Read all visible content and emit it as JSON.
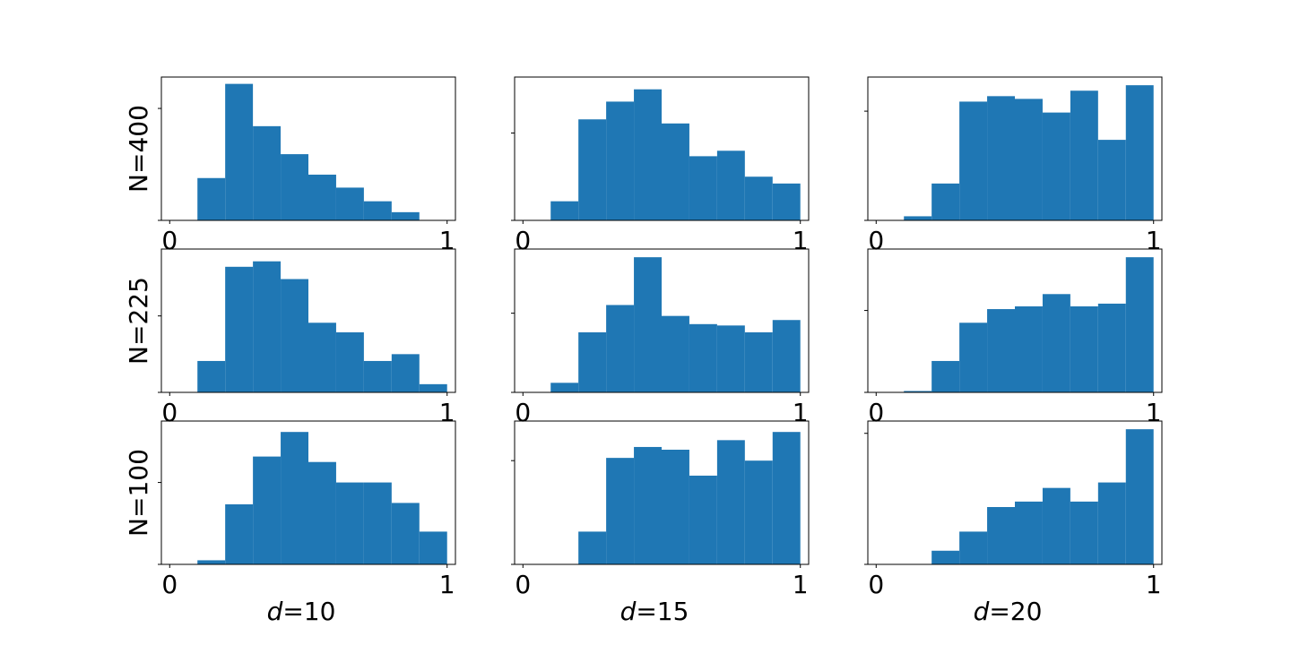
{
  "chart_data": {
    "type": "bar",
    "layout": "3x3 grid of histograms",
    "bar_color": "#1f77b4",
    "bins": [
      0.0,
      0.1,
      0.2,
      0.3,
      0.4,
      0.5,
      0.6,
      0.7,
      0.8,
      0.9,
      1.0
    ],
    "xlim": [
      -0.03,
      1.03
    ],
    "x_tick_labels": [
      "0",
      "1"
    ],
    "x_tick_values": [
      0,
      1
    ],
    "grid": false,
    "row_labels": [
      "N=400",
      "N=225",
      "N=100"
    ],
    "col_labels": [
      {
        "var": "d",
        "suffix": "=10"
      },
      {
        "var": "d",
        "suffix": "=15"
      },
      {
        "var": "d",
        "suffix": "=20"
      }
    ],
    "panels": [
      [
        {
          "values": [
            0,
            0.31,
            1.0,
            0.69,
            0.485,
            0.335,
            0.24,
            0.14,
            0.06,
            0
          ],
          "ymax": 1.05,
          "ytick": 0.82
        },
        {
          "values": [
            0,
            0.14,
            0.74,
            0.87,
            0.96,
            0.71,
            0.47,
            0.51,
            0.32,
            0.27
          ],
          "ymax": 1.05,
          "ytick": 0.64
        },
        {
          "values": [
            0,
            0.03,
            0.27,
            0.87,
            0.91,
            0.89,
            0.79,
            0.95,
            0.59,
            0.99
          ],
          "ymax": 1.05,
          "ytick": 0.8
        }
      ],
      [
        {
          "values": [
            0,
            0.23,
            0.92,
            0.96,
            0.83,
            0.51,
            0.44,
            0.23,
            0.28,
            0.06
          ],
          "ymax": 1.05,
          "ytick": 0.56
        },
        {
          "values": [
            0,
            0.07,
            0.44,
            0.64,
            0.99,
            0.56,
            0.5,
            0.49,
            0.44,
            0.53
          ],
          "ymax": 1.05,
          "ytick": 0.58
        },
        {
          "values": [
            0,
            0.01,
            0.23,
            0.51,
            0.61,
            0.63,
            0.72,
            0.63,
            0.65,
            0.99
          ],
          "ymax": 1.05,
          "ytick": 0.6
        }
      ],
      [
        {
          "values": [
            0,
            0.03,
            0.44,
            0.79,
            0.97,
            0.75,
            0.6,
            0.6,
            0.45,
            0.24
          ],
          "ymax": 1.05,
          "ytick": 0.6
        },
        {
          "values": [
            0,
            0,
            0.24,
            0.78,
            0.86,
            0.84,
            0.65,
            0.91,
            0.76,
            0.97
          ],
          "ymax": 1.05,
          "ytick": 0.76
        },
        {
          "values": [
            0,
            0,
            0.1,
            0.24,
            0.42,
            0.46,
            0.56,
            0.46,
            0.6,
            0.99
          ],
          "ymax": 1.05,
          "ytick": 0.96
        }
      ]
    ]
  }
}
